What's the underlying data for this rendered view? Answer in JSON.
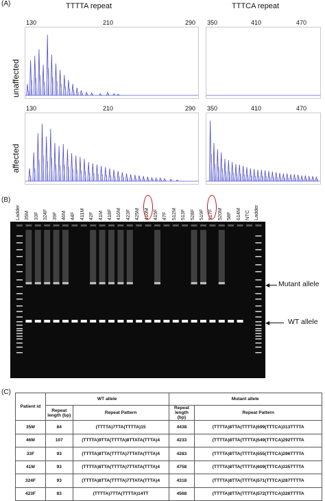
{
  "panel_a": {
    "label": "(A)",
    "col_titles": [
      "TTTTA repeat",
      "TTTCA repeat"
    ],
    "row_labels": [
      "unaffected",
      "affected"
    ],
    "ticks_left": [
      "130",
      "210",
      "290"
    ],
    "ticks_right": [
      "350",
      "410",
      "470"
    ]
  },
  "chart_data": [
    {
      "type": "line",
      "name": "unaffected-TTTTA",
      "xlim": [
        130,
        290
      ],
      "peaks_x": [
        130,
        133,
        137,
        141,
        145,
        149,
        153,
        157,
        161,
        165,
        169,
        173,
        177,
        181,
        186,
        191,
        199,
        206,
        212,
        216
      ],
      "peaks_y": [
        0.18,
        0.55,
        0.62,
        0.72,
        0.48,
        0.95,
        0.64,
        0.5,
        0.4,
        0.32,
        0.24,
        0.18,
        0.12,
        0.08,
        0.05,
        0.04,
        0.03,
        0.05,
        0.03,
        0.02
      ]
    },
    {
      "type": "line",
      "name": "unaffected-TTTCA",
      "xlim": [
        350,
        470
      ],
      "peaks_x": [],
      "peaks_y": []
    },
    {
      "type": "line",
      "name": "affected-TTTTA",
      "xlim": [
        130,
        290
      ],
      "peaks_x": [
        132,
        136,
        140,
        144,
        148,
        152,
        156,
        160,
        164,
        168,
        172,
        176,
        180,
        184,
        188,
        192,
        196,
        200,
        204,
        208,
        212,
        216,
        220,
        224,
        228,
        232,
        236,
        240,
        244,
        248,
        252,
        256,
        260,
        266,
        272
      ],
      "peaks_y": [
        0.2,
        0.45,
        0.75,
        0.9,
        0.7,
        0.82,
        0.6,
        0.55,
        0.58,
        0.5,
        0.44,
        0.4,
        0.38,
        0.35,
        0.3,
        0.28,
        0.26,
        0.24,
        0.22,
        0.2,
        0.18,
        0.16,
        0.14,
        0.12,
        0.11,
        0.1,
        0.09,
        0.08,
        0.07,
        0.06,
        0.05,
        0.05,
        0.04,
        0.03,
        0.02
      ]
    },
    {
      "type": "line",
      "name": "affected-TTTCA",
      "xlim": [
        350,
        470
      ],
      "peaks_x": [
        352,
        356,
        360,
        364,
        368,
        372,
        376,
        380,
        384,
        388,
        392,
        396,
        400,
        404,
        408,
        412,
        416,
        420,
        424,
        428,
        432,
        436,
        440,
        444,
        448,
        452,
        456,
        460,
        464,
        468
      ],
      "peaks_y": [
        0.95,
        0.6,
        0.5,
        0.45,
        0.35,
        0.33,
        0.3,
        0.27,
        0.26,
        0.24,
        0.22,
        0.2,
        0.19,
        0.18,
        0.18,
        0.17,
        0.16,
        0.15,
        0.14,
        0.13,
        0.12,
        0.12,
        0.11,
        0.11,
        0.1,
        0.09,
        0.09,
        0.08,
        0.08,
        0.07
      ]
    }
  ],
  "panel_b": {
    "label": "(B)",
    "lanes": [
      "Ladder",
      "35M",
      "33F",
      "324F",
      "39F",
      "46M",
      "44F",
      "411M",
      "42F",
      "41M",
      "418F",
      "416M",
      "423F",
      "425M",
      "410M",
      "415F",
      "47F",
      "512M",
      "513F",
      "528F",
      "519F",
      "517F",
      "520M",
      "58F",
      "614M",
      "NTC",
      "Ladder"
    ],
    "circled": [
      "410M",
      "517F"
    ],
    "mutant_label": "Mutant allele",
    "wt_label": "WT allele"
  },
  "panel_c": {
    "label": "(C)",
    "headers": {
      "patient": "Patient id",
      "wt": "WT allele",
      "mutant": "Mutant allele",
      "len": "Repeat length (bp)",
      "pattern": "Repeat Pattern"
    },
    "rows": [
      {
        "id": "35M",
        "wt_len": "84",
        "wt_pat": "(TTTTA)7TTA(TTTTA)15",
        "mut_len": "4438",
        "mut_pat": "(TTTTA)8TTA(TTTTA)599(TTTCA)313TTTTA"
      },
      {
        "id": "46M",
        "wt_len": "107",
        "wt_pat": "(TTTTA)9TTA(TTTTA)8TTATA(TTTA)4",
        "mut_len": "4233",
        "mut_pat": "(TTTTA)8TTA(TTTTA)549(TTTCA)292TTTTA"
      },
      {
        "id": "33F",
        "wt_len": "93",
        "wt_pat": "(TTTTA)8TTA(TTTTA)7TTATA(TTTA)4",
        "mut_len": "4283",
        "mut_pat": "(TTTTA)8TTA(TTTTA)555(TTTCA)296TTTTA"
      },
      {
        "id": "41M",
        "wt_len": "93",
        "wt_pat": "(TTTTA)8TTA(TTTTA)7TTATA(TTTA)4",
        "mut_len": "4758",
        "mut_pat": "(TTTTA)8TTA(TTTTA)609(TTTCA)335TTTTA"
      },
      {
        "id": "324F",
        "wt_len": "93",
        "wt_pat": "(TTTTA)8TTA(TTTTA)7TTATA(TTTA)4",
        "mut_len": "4318",
        "mut_pat": "(TTTTA)8TTA(TTTTA)571(TTTCA)287TTTTA"
      },
      {
        "id": "423F",
        "wt_len": "83",
        "wt_pat": "(TTTTA)7TTA(TTTTA)14TT",
        "mut_len": "4568",
        "mut_pat": "(TTTTA)8TTA(TTTTA)572(TTTCA)326TTTTA"
      }
    ]
  }
}
